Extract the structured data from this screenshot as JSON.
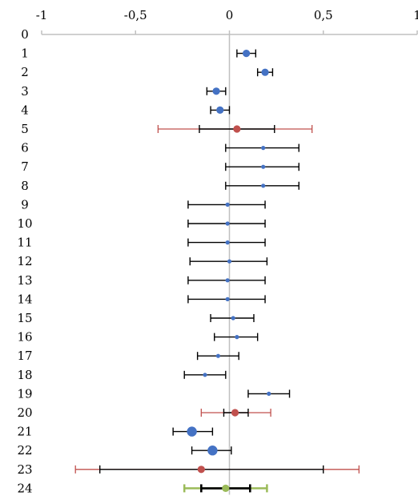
{
  "chart_data": {
    "type": "scatter",
    "title": "",
    "xlabel": "",
    "ylabel": "",
    "xlim": [
      -1,
      1
    ],
    "ylim": [
      0,
      24
    ],
    "x_tick_labels": [
      "-1",
      "-0,5",
      "0",
      "0,5",
      "1"
    ],
    "x_tick_values": [
      -1,
      -0.5,
      0,
      0.5,
      1
    ],
    "y_tick_labels": [
      "0",
      "1",
      "2",
      "3",
      "4",
      "5",
      "6",
      "7",
      "8",
      "9",
      "10",
      "11",
      "12",
      "13",
      "14",
      "15",
      "16",
      "17",
      "18",
      "19",
      "20",
      "21",
      "22",
      "23",
      "24"
    ],
    "grid": false,
    "legend": "none",
    "points": [
      {
        "row": 1,
        "x": 0.09,
        "ci": [
          0.04,
          0.14
        ],
        "marker": "large",
        "color": "#4472C4"
      },
      {
        "row": 2,
        "x": 0.19,
        "ci": [
          0.15,
          0.23
        ],
        "marker": "large",
        "color": "#4472C4"
      },
      {
        "row": 3,
        "x": -0.07,
        "ci": [
          -0.12,
          -0.02
        ],
        "marker": "large",
        "color": "#4472C4"
      },
      {
        "row": 4,
        "x": -0.05,
        "ci": [
          -0.1,
          0.0
        ],
        "marker": "large",
        "color": "#4472C4"
      },
      {
        "row": 5,
        "x": 0.04,
        "ci": [
          -0.16,
          0.24
        ],
        "pi": [
          -0.38,
          0.44
        ],
        "marker": "large",
        "color": "#C0504D"
      },
      {
        "row": 6,
        "x": 0.18,
        "ci": [
          -0.02,
          0.37
        ],
        "marker": "small",
        "color": "#4472C4"
      },
      {
        "row": 7,
        "x": 0.18,
        "ci": [
          -0.02,
          0.37
        ],
        "marker": "small",
        "color": "#4472C4"
      },
      {
        "row": 8,
        "x": 0.18,
        "ci": [
          -0.02,
          0.37
        ],
        "marker": "small",
        "color": "#4472C4"
      },
      {
        "row": 9,
        "x": -0.01,
        "ci": [
          -0.22,
          0.19
        ],
        "marker": "small",
        "color": "#4472C4"
      },
      {
        "row": 10,
        "x": -0.01,
        "ci": [
          -0.22,
          0.19
        ],
        "marker": "small",
        "color": "#4472C4"
      },
      {
        "row": 11,
        "x": -0.01,
        "ci": [
          -0.22,
          0.19
        ],
        "marker": "small",
        "color": "#4472C4"
      },
      {
        "row": 12,
        "x": 0.0,
        "ci": [
          -0.21,
          0.2
        ],
        "marker": "small",
        "color": "#4472C4"
      },
      {
        "row": 13,
        "x": -0.01,
        "ci": [
          -0.22,
          0.19
        ],
        "marker": "small",
        "color": "#4472C4"
      },
      {
        "row": 14,
        "x": -0.01,
        "ci": [
          -0.22,
          0.19
        ],
        "marker": "small",
        "color": "#4472C4"
      },
      {
        "row": 15,
        "x": 0.02,
        "ci": [
          -0.1,
          0.13
        ],
        "marker": "small",
        "color": "#4472C4"
      },
      {
        "row": 16,
        "x": 0.04,
        "ci": [
          -0.08,
          0.15
        ],
        "marker": "small",
        "color": "#4472C4"
      },
      {
        "row": 17,
        "x": -0.06,
        "ci": [
          -0.17,
          0.05
        ],
        "marker": "small",
        "color": "#4472C4"
      },
      {
        "row": 18,
        "x": -0.13,
        "ci": [
          -0.24,
          -0.02
        ],
        "marker": "small",
        "color": "#4472C4"
      },
      {
        "row": 19,
        "x": 0.21,
        "ci": [
          0.1,
          0.32
        ],
        "marker": "small",
        "color": "#4472C4"
      },
      {
        "row": 20,
        "x": 0.03,
        "ci": [
          -0.03,
          0.1
        ],
        "pi": [
          -0.15,
          0.22
        ],
        "marker": "large",
        "color": "#C0504D"
      },
      {
        "row": 21,
        "x": -0.2,
        "ci": [
          -0.3,
          -0.09
        ],
        "marker": "xlarge",
        "color": "#4472C4"
      },
      {
        "row": 22,
        "x": -0.09,
        "ci": [
          -0.2,
          0.01
        ],
        "marker": "xlarge",
        "color": "#4472C4"
      },
      {
        "row": 23,
        "x": -0.15,
        "ci": [
          -0.69,
          0.5
        ],
        "pi": [
          -0.82,
          0.69
        ],
        "marker": "large",
        "color": "#C0504D"
      },
      {
        "row": 24,
        "x": -0.02,
        "ci": [
          -0.15,
          0.11
        ],
        "pi": [
          -0.24,
          0.2
        ],
        "marker": "large",
        "color": "#9BBB59",
        "ci_color": "#000000",
        "pi_color": "#9BBB59",
        "ci_thick": true
      }
    ],
    "colors": {
      "axis": "#C0C0C0",
      "ci_whisker": "#000000",
      "pi_whisker": "#C0504D",
      "marker_blue": "#4472C4",
      "marker_red": "#C0504D",
      "marker_green": "#9BBB59"
    }
  }
}
